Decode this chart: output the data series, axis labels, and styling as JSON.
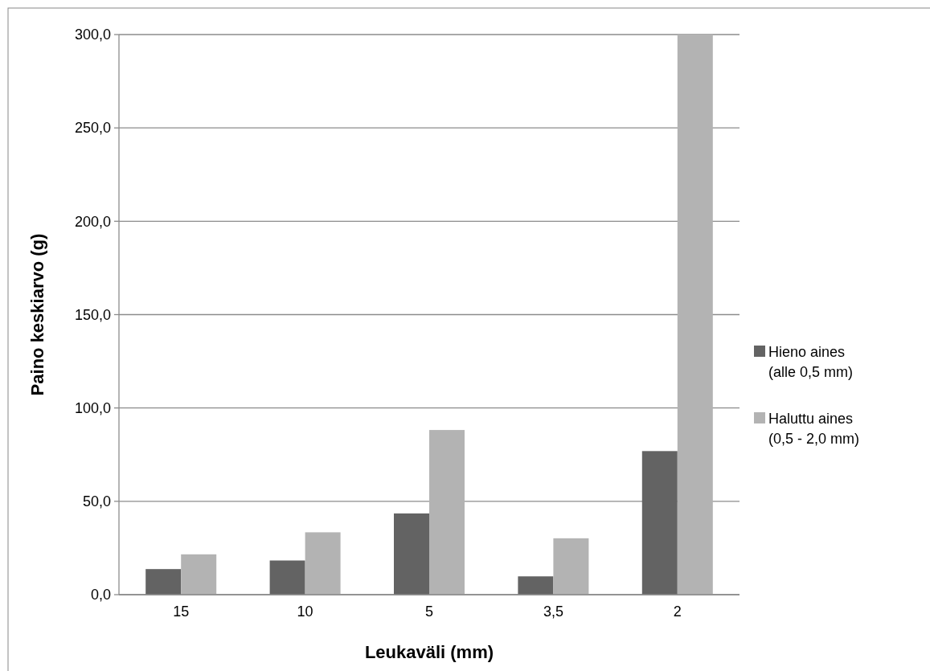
{
  "chart_data": {
    "type": "bar",
    "xlabel": "Leukaväli (mm)",
    "ylabel": "Paino keskiarvo (g)",
    "categories": [
      "15",
      "10",
      "5",
      "3,5",
      "2"
    ],
    "series": [
      {
        "name": "Hieno aines (alle 0,5 mm)",
        "color": "#636363",
        "values": [
          13.7,
          18.3,
          43.5,
          9.8,
          76.9
        ]
      },
      {
        "name": "Haluttu aines (0,5 - 2,0 mm)",
        "color": "#b3b3b3",
        "values": [
          21.6,
          33.4,
          88.2,
          30.2,
          300
        ]
      }
    ],
    "ylim": [
      0,
      300
    ],
    "yticks": [
      {
        "value": 0,
        "label": "0,0"
      },
      {
        "value": 50,
        "label": "50,0"
      },
      {
        "value": 100,
        "label": "100,0"
      },
      {
        "value": 150,
        "label": "150,0"
      },
      {
        "value": 200,
        "label": "200,0"
      },
      {
        "value": 250,
        "label": "250,0"
      },
      {
        "value": 300,
        "label": "300,0"
      }
    ],
    "grid": "y",
    "legend": "right"
  }
}
